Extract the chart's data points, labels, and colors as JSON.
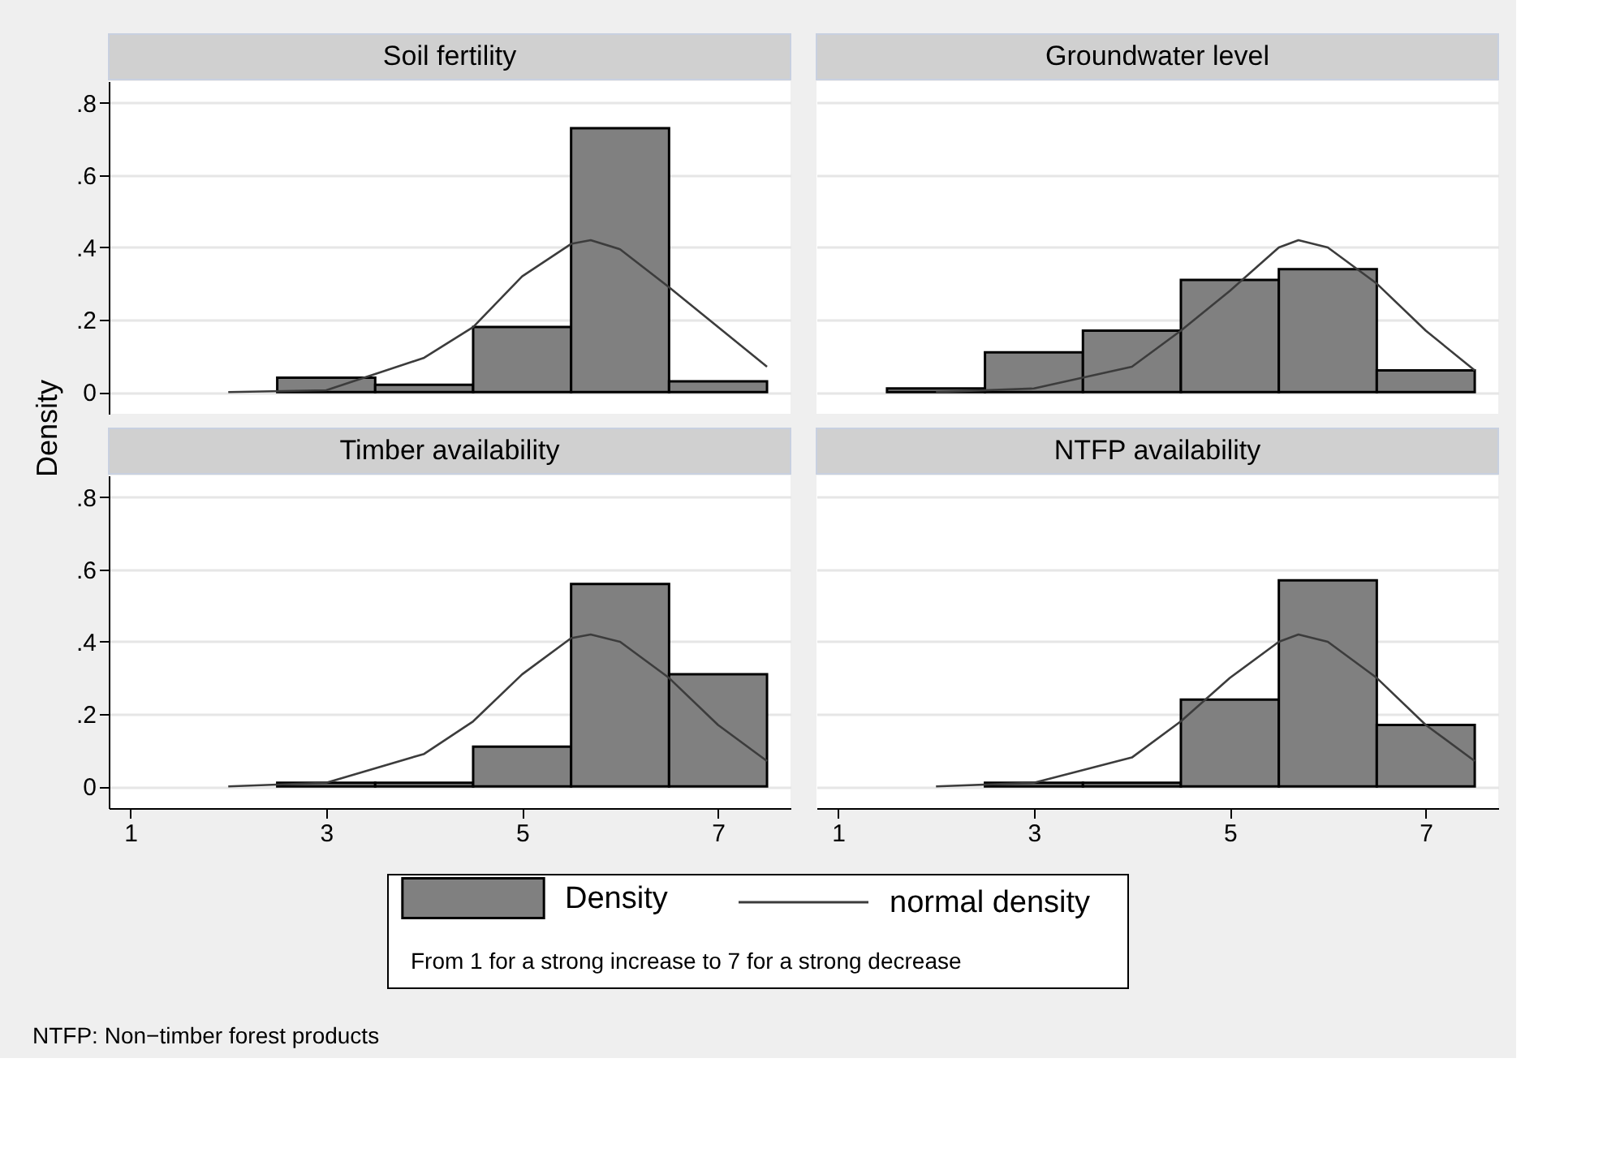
{
  "chart_data": [
    {
      "type": "histogram",
      "title": "Soil fertility",
      "ylabel": "Density",
      "xlim": [
        0.78,
        7.74
      ],
      "ylim": [
        -0.06,
        0.86
      ],
      "xticks": [
        1,
        3,
        5,
        7
      ],
      "yticks": [
        {
          "value": 0,
          "label": "0"
        },
        {
          "value": 0.2,
          "label": ".2"
        },
        {
          "value": 0.4,
          "label": ".4"
        },
        {
          "value": 0.6,
          "label": ".6"
        },
        {
          "value": 0.8,
          "label": ".8"
        }
      ],
      "grid": "y",
      "tick_labels": "y",
      "series": [
        {
          "type": "histogram",
          "color": "#808080",
          "bins": [
            2.5,
            3.5,
            4.5,
            5.5,
            6.5,
            7.5
          ],
          "values": [
            0.04,
            0.02,
            0.18,
            0.73,
            0.03
          ]
        },
        {
          "type": "line",
          "color": "#3c3c3c",
          "x": [
            2,
            3,
            4,
            4.5,
            5,
            5.5,
            5.7,
            6,
            6.5,
            7,
            7.5
          ],
          "values": [
            0,
            0.005,
            0.095,
            0.18,
            0.32,
            0.41,
            0.42,
            0.395,
            0.29,
            0.18,
            0.07
          ]
        }
      ]
    },
    {
      "type": "histogram",
      "title": "Groundwater level",
      "xlim": [
        0.78,
        7.74
      ],
      "ylim": [
        -0.06,
        0.86
      ],
      "xticks": [
        1,
        3,
        5,
        7
      ],
      "yticks": [
        0,
        0.2,
        0.4,
        0.6,
        0.8
      ],
      "grid": "y",
      "tick_labels": false,
      "series": [
        {
          "type": "histogram",
          "color": "#808080",
          "bins": [
            1.5,
            2.5,
            3.5,
            4.5,
            5.5,
            6.5,
            7.5
          ],
          "values": [
            0.01,
            0.11,
            0.17,
            0.31,
            0.34,
            0.06
          ]
        },
        {
          "type": "line",
          "color": "#3c3c3c",
          "x": [
            2,
            3,
            4,
            4.5,
            5,
            5.5,
            5.7,
            6,
            6.5,
            7,
            7.5
          ],
          "values": [
            0,
            0.01,
            0.07,
            0.17,
            0.28,
            0.4,
            0.42,
            0.4,
            0.3,
            0.17,
            0.06
          ]
        }
      ]
    },
    {
      "type": "histogram",
      "title": "Timber availability",
      "xlim": [
        0.78,
        7.74
      ],
      "ylim": [
        -0.06,
        0.86
      ],
      "xticks": [
        1,
        3,
        5,
        7
      ],
      "yticks": [
        {
          "value": 0,
          "label": "0"
        },
        {
          "value": 0.2,
          "label": ".2"
        },
        {
          "value": 0.4,
          "label": ".4"
        },
        {
          "value": 0.6,
          "label": ".6"
        },
        {
          "value": 0.8,
          "label": ".8"
        }
      ],
      "grid": "y",
      "legend": "bottom",
      "annotations": [
        "From 1 for a strong increase to 7 for a strong decrease",
        "NTFP: Non−timber forest products"
      ],
      "series": [
        {
          "name": "Density",
          "type": "histogram",
          "color": "#808080",
          "bins": [
            2.5,
            3.5,
            4.5,
            5.5,
            6.5,
            7.5
          ],
          "values": [
            0.01,
            0.01,
            0.11,
            0.56,
            0.31
          ]
        },
        {
          "name": "normal density",
          "type": "line",
          "color": "#3c3c3c",
          "x": [
            2,
            3,
            4,
            4.5,
            5,
            5.5,
            5.7,
            6,
            6.5,
            7,
            7.5
          ],
          "values": [
            0,
            0.01,
            0.09,
            0.18,
            0.31,
            0.41,
            0.42,
            0.4,
            0.3,
            0.17,
            0.07
          ]
        }
      ]
    },
    {
      "type": "histogram",
      "title": "NTFP availability",
      "xlim": [
        0.78,
        7.74
      ],
      "ylim": [
        -0.06,
        0.86
      ],
      "xticks": [
        1,
        3,
        5,
        7
      ],
      "yticks": [
        0,
        0.2,
        0.4,
        0.6,
        0.8
      ],
      "grid": "y",
      "tick_labels": "x",
      "series": [
        {
          "type": "histogram",
          "color": "#808080",
          "bins": [
            2.5,
            3.5,
            4.5,
            5.5,
            6.5,
            7.5
          ],
          "values": [
            0.01,
            0.01,
            0.24,
            0.57,
            0.17
          ]
        },
        {
          "type": "line",
          "color": "#3c3c3c",
          "x": [
            2,
            3,
            4,
            4.5,
            5,
            5.5,
            5.7,
            6,
            6.5,
            7,
            7.5
          ],
          "values": [
            0,
            0.01,
            0.08,
            0.18,
            0.3,
            0.4,
            0.42,
            0.4,
            0.3,
            0.17,
            0.07
          ]
        }
      ]
    }
  ]
}
